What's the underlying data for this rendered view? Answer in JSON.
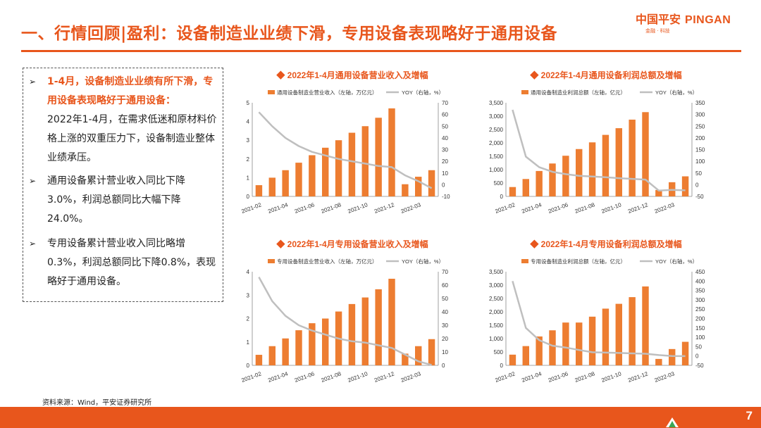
{
  "header": {
    "title": "一、行情回顾|盈利：设备制造业业绩下滑，专用设备表现略好于通用设备",
    "logo_cn": "中国平安",
    "logo_en": "PINGAN",
    "logo_sub": "金融 · 科技"
  },
  "textbox": {
    "bullet1_head": "1-4月，设备制造业业绩有所下滑，专用设备表现略好于通用设备：",
    "bullet1_body": "2022年1-4月，在需求低迷和原材料价格上涨的双重压力下，设备制造业整体业绩承压。",
    "bullet2": "通用设备累计营业收入同比下降3.0%，利润总额同比大幅下降24.0%。",
    "bullet3": "专用设备累计营业收入同比略增0.3%，利润总额同比下降0.8%，表现略好于通用设备。"
  },
  "source": "资料来源：Wind，平安证券研究所",
  "page_number": "7",
  "colors": {
    "accent": "#e8561c",
    "bar": "#ed7d31",
    "line": "#bfbfbf"
  },
  "icons": {
    "bullet": "arrow-right-outline-icon",
    "title_marker": "diamond-icon",
    "footer": "ping-an-mark-icon"
  },
  "chart_data": [
    {
      "type": "bar",
      "title": "◆ 2022年1-4月通用设备营业收入及增幅",
      "legend": [
        "通用设备制造业营业收入（左轴，万亿元）",
        "YOY（右轴，%）"
      ],
      "legend_placement": "top",
      "categories": [
        "2021-02",
        "2021-03",
        "2021-04",
        "2021-05",
        "2021-06",
        "2021-07",
        "2021-08",
        "2021-09",
        "2021-10",
        "2021-11",
        "2021-12",
        "2022-02",
        "2022-03",
        "2022-04"
      ],
      "x_tick_labels": [
        "2021-02",
        "2021-04",
        "2021-06",
        "2021-08",
        "2021-10",
        "2021-12",
        "2022-03"
      ],
      "series": [
        {
          "name": "通用设备制造业营业收入（左轴，万亿元）",
          "axis": "left",
          "type": "bar",
          "values": [
            0.6,
            1.0,
            1.4,
            1.8,
            2.2,
            2.6,
            3.0,
            3.4,
            3.75,
            4.2,
            4.7,
            0.65,
            1.05,
            1.4
          ]
        },
        {
          "name": "YOY（右轴，%）",
          "axis": "right",
          "type": "line",
          "values": [
            62,
            50,
            40,
            33,
            28,
            25,
            22,
            20,
            18,
            16,
            15,
            8,
            3,
            -3
          ]
        }
      ],
      "ylim_left": [
        0,
        5
      ],
      "yticks_left": [
        "0",
        "1",
        "2",
        "3",
        "4",
        "5"
      ],
      "ylim_right": [
        -10,
        70
      ],
      "yticks_right": [
        "-10",
        "0",
        "10",
        "20",
        "30",
        "40",
        "50",
        "60",
        "70"
      ],
      "grid": false
    },
    {
      "type": "bar",
      "title": "◆ 2022年1-4月通用设备利润总额及增幅",
      "legend": [
        "通用设备制造业利润总额（左轴，亿元）",
        "YOY（右轴，%）"
      ],
      "legend_placement": "top",
      "categories": [
        "2021-02",
        "2021-03",
        "2021-04",
        "2021-05",
        "2021-06",
        "2021-07",
        "2021-08",
        "2021-09",
        "2021-10",
        "2021-11",
        "2021-12",
        "2022-02",
        "2022-03",
        "2022-04"
      ],
      "x_tick_labels": [
        "2021-02",
        "2021-04",
        "2021-06",
        "2021-08",
        "2021-10",
        "2021-12",
        "2022-03"
      ],
      "series": [
        {
          "name": "通用设备制造业利润总额（左轴，亿元）",
          "axis": "left",
          "type": "bar",
          "values": [
            350,
            650,
            950,
            1230,
            1520,
            1770,
            2020,
            2300,
            2550,
            2870,
            3150,
            240,
            530,
            750
          ]
        },
        {
          "name": "YOY（右轴，%）",
          "axis": "right",
          "type": "line",
          "values": [
            320,
            120,
            75,
            55,
            45,
            38,
            35,
            32,
            28,
            25,
            22,
            -25,
            -22,
            -24
          ]
        }
      ],
      "ylim_left": [
        0,
        3500
      ],
      "yticks_left": [
        "0",
        "500",
        "1,000",
        "1,500",
        "2,000",
        "2,500",
        "3,000",
        "3,500"
      ],
      "ylim_right": [
        -50,
        350
      ],
      "yticks_right": [
        "-50",
        "0",
        "50",
        "100",
        "150",
        "200",
        "250",
        "300",
        "350"
      ],
      "grid": false
    },
    {
      "type": "bar",
      "title": "◆ 2022年1-4月专用设备营业收入及增幅",
      "legend": [
        "专用设备制造业营业收入（左轴，万亿元）",
        "YOY（右轴，%）"
      ],
      "legend_placement": "top",
      "categories": [
        "2021-02",
        "2021-03",
        "2021-04",
        "2021-05",
        "2021-06",
        "2021-07",
        "2021-08",
        "2021-09",
        "2021-10",
        "2021-11",
        "2021-12",
        "2022-02",
        "2022-03",
        "2022-04"
      ],
      "x_tick_labels": [
        "2021-02",
        "2021-04",
        "2021-06",
        "2021-08",
        "2021-10",
        "2021-12",
        "2022-03"
      ],
      "series": [
        {
          "name": "专用设备制造业营业收入（左轴，万亿元）",
          "axis": "left",
          "type": "bar",
          "values": [
            0.45,
            0.82,
            1.15,
            1.5,
            1.8,
            2.0,
            2.3,
            2.62,
            2.9,
            3.25,
            3.7,
            0.5,
            0.82,
            1.12
          ]
        },
        {
          "name": "YOY（右轴，%）",
          "axis": "right",
          "type": "line",
          "values": [
            66,
            48,
            37,
            30,
            26,
            23,
            20,
            18,
            17,
            15,
            13,
            8,
            3,
            0.3
          ]
        }
      ],
      "ylim_left": [
        0,
        4
      ],
      "yticks_left": [
        "0",
        "1",
        "2",
        "3",
        "4"
      ],
      "ylim_right": [
        0,
        70
      ],
      "yticks_right": [
        "0",
        "10",
        "20",
        "30",
        "40",
        "50",
        "60",
        "70"
      ],
      "grid": false
    },
    {
      "type": "bar",
      "title": "◆ 2022年1-4月专用设备利润总额及增幅",
      "legend": [
        "专用设备制造业利润总额（左轴，亿元）",
        "YOY（右轴，%）"
      ],
      "legend_placement": "top",
      "categories": [
        "2021-02",
        "2021-03",
        "2021-04",
        "2021-05",
        "2021-06",
        "2021-07",
        "2021-08",
        "2021-09",
        "2021-10",
        "2021-11",
        "2021-12",
        "2022-02",
        "2022-03",
        "2022-04"
      ],
      "x_tick_labels": [
        "2021-02",
        "2021-04",
        "2021-06",
        "2021-08",
        "2021-10",
        "2021-12",
        "2022-03"
      ],
      "series": [
        {
          "name": "专用设备制造业利润总额（左轴，亿元）",
          "axis": "left",
          "type": "bar",
          "values": [
            400,
            720,
            1080,
            1310,
            1600,
            1600,
            1820,
            2120,
            2300,
            2550,
            2950,
            240,
            610,
            880
          ]
        },
        {
          "name": "YOY（右轴，%）",
          "axis": "right",
          "type": "line",
          "values": [
            400,
            150,
            85,
            55,
            45,
            32,
            20,
            18,
            16,
            14,
            12,
            5,
            0,
            -0.8
          ]
        }
      ],
      "ylim_left": [
        0,
        3500
      ],
      "yticks_left": [
        "0",
        "500",
        "1,000",
        "1,500",
        "2,000",
        "2,500",
        "3,000",
        "3,500"
      ],
      "ylim_right": [
        -50,
        450
      ],
      "yticks_right": [
        "-50",
        "0",
        "50",
        "100",
        "150",
        "200",
        "250",
        "300",
        "350",
        "400",
        "450"
      ],
      "grid": false
    }
  ]
}
